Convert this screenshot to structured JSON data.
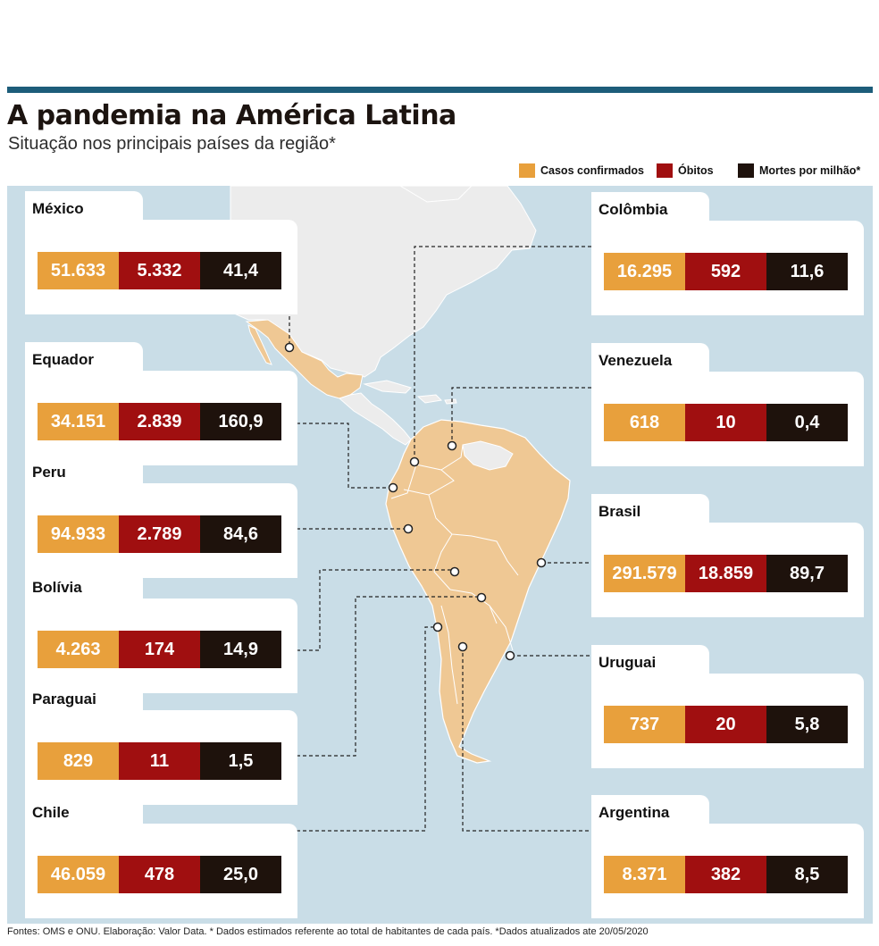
{
  "title": "A pandemia na América Latina",
  "subtitle": "Situação nos principais países da região*",
  "legend": {
    "items": [
      {
        "label": "Casos confirmados",
        "color": "#e8a03c"
      },
      {
        "label": "Óbitos",
        "color": "#a00f10"
      },
      {
        "label": "Mortes por milhão*",
        "color": "#1e120c"
      }
    ]
  },
  "countries": {
    "mexico": {
      "name": "México",
      "casos": "51.633",
      "obitos": "5.332",
      "mortes": "41,4"
    },
    "equador": {
      "name": "Equador",
      "casos": "34.151",
      "obitos": "2.839",
      "mortes": "160,9"
    },
    "peru": {
      "name": "Peru",
      "casos": "94.933",
      "obitos": "2.789",
      "mortes": "84,6"
    },
    "bolivia": {
      "name": "Bolívia",
      "casos": "4.263",
      "obitos": "174",
      "mortes": "14,9"
    },
    "paraguai": {
      "name": "Paraguai",
      "casos": "829",
      "obitos": "11",
      "mortes": "1,5"
    },
    "chile": {
      "name": "Chile",
      "casos": "46.059",
      "obitos": "478",
      "mortes": "25,0"
    },
    "colombia": {
      "name": "Colômbia",
      "casos": "16.295",
      "obitos": "592",
      "mortes": "11,6"
    },
    "venezuela": {
      "name": "Venezuela",
      "casos": "618",
      "obitos": "10",
      "mortes": "0,4"
    },
    "brasil": {
      "name": "Brasil",
      "casos": "291.579",
      "obitos": "18.859",
      "mortes": "89,7"
    },
    "uruguai": {
      "name": "Uruguai",
      "casos": "737",
      "obitos": "20",
      "mortes": "5,8"
    },
    "argentina": {
      "name": "Argentina",
      "casos": "8.371",
      "obitos": "382",
      "mortes": "8,5"
    }
  },
  "colors": {
    "ocean": "#c9dde7",
    "land_other": "#ececec",
    "land_latam": "#efc894",
    "border": "#ffffff",
    "header_bar": "#1d5d7a"
  },
  "source": "Fontes: OMS e ONU. Elaboração: Valor Data. * Dados estimados referente ao total de habitantes de cada país. *Dados atualizados ate 20/05/2020"
}
